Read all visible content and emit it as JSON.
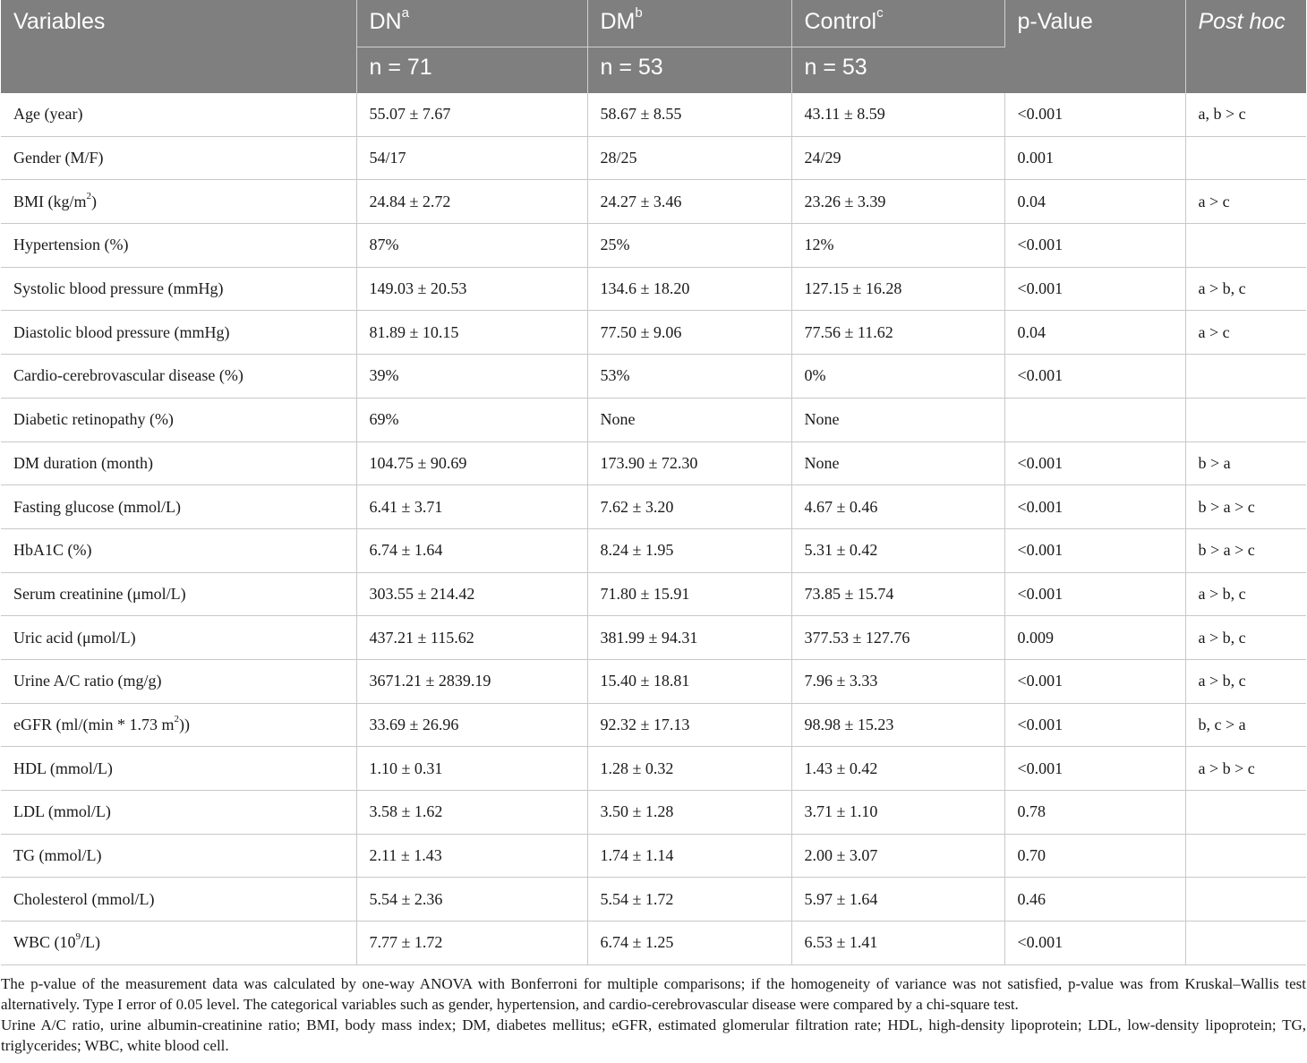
{
  "header": {
    "variables": "Variables",
    "dn": {
      "label": "DN",
      "sup": "a",
      "n": "n = 71"
    },
    "dm": {
      "label": "DM",
      "sup": "b",
      "n": "n = 53"
    },
    "control": {
      "label": "Control",
      "sup": "c",
      "n": "n = 53"
    },
    "pvalue": "p-Value",
    "posthoc": "Post hoc"
  },
  "rows": [
    {
      "variable": "Age (year)",
      "dn": "55.07 ± 7.67",
      "dm": "58.67 ± 8.55",
      "control": "43.11 ± 8.59",
      "p": "<0.001",
      "posthoc": "a, b > c"
    },
    {
      "variable": "Gender (M/F)",
      "dn": "54/17",
      "dm": "28/25",
      "control": "24/29",
      "p": "0.001",
      "posthoc": ""
    },
    {
      "variable": "BMI (kg/m",
      "variable_sup": "2",
      "variable_after": ")",
      "dn": "24.84 ± 2.72",
      "dm": "24.27 ± 3.46",
      "control": "23.26 ± 3.39",
      "p": "0.04",
      "posthoc": "a > c"
    },
    {
      "variable": "Hypertension (%)",
      "dn": "87%",
      "dm": "25%",
      "control": "12%",
      "p": "<0.001",
      "posthoc": ""
    },
    {
      "variable": "Systolic blood pressure (mmHg)",
      "dn": "149.03 ± 20.53",
      "dm": "134.6 ± 18.20",
      "control": "127.15 ± 16.28",
      "p": "<0.001",
      "posthoc": "a > b, c"
    },
    {
      "variable": "Diastolic blood pressure (mmHg)",
      "dn": "81.89 ± 10.15",
      "dm": "77.50 ± 9.06",
      "control": "77.56 ± 11.62",
      "p": "0.04",
      "posthoc": "a > c"
    },
    {
      "variable": "Cardio-cerebrovascular disease (%)",
      "dn": "39%",
      "dm": "53%",
      "control": "0%",
      "p": "<0.001",
      "posthoc": ""
    },
    {
      "variable": "Diabetic retinopathy (%)",
      "dn": "69%",
      "dm": "None",
      "control": "None",
      "p": "",
      "posthoc": ""
    },
    {
      "variable": "DM duration (month)",
      "dn": "104.75 ± 90.69",
      "dm": "173.90 ± 72.30",
      "control": "None",
      "p": "<0.001",
      "posthoc": "b > a"
    },
    {
      "variable": "Fasting glucose (mmol/L)",
      "dn": "6.41 ± 3.71",
      "dm": "7.62 ± 3.20",
      "control": "4.67 ± 0.46",
      "p": "<0.001",
      "posthoc": "b > a > c"
    },
    {
      "variable": "HbA1C (%)",
      "dn": "6.74 ± 1.64",
      "dm": "8.24 ± 1.95",
      "control": "5.31 ± 0.42",
      "p": "<0.001",
      "posthoc": "b > a > c"
    },
    {
      "variable": "Serum creatinine (μmol/L)",
      "dn": "303.55 ± 214.42",
      "dm": "71.80 ± 15.91",
      "control": "73.85 ± 15.74",
      "p": "<0.001",
      "posthoc": "a > b, c"
    },
    {
      "variable": "Uric acid (μmol/L)",
      "dn": "437.21 ± 115.62",
      "dm": "381.99 ± 94.31",
      "control": "377.53 ± 127.76",
      "p": "0.009",
      "posthoc": "a > b, c"
    },
    {
      "variable": "Urine A/C ratio (mg/g)",
      "dn": "3671.21 ± 2839.19",
      "dm": "15.40 ± 18.81",
      "control": "7.96 ± 3.33",
      "p": "<0.001",
      "posthoc": "a > b, c"
    },
    {
      "variable": "eGFR (ml/(min * 1.73 m",
      "variable_sup": "2",
      "variable_after": "))",
      "dn": "33.69 ± 26.96",
      "dm": "92.32 ± 17.13",
      "control": "98.98 ± 15.23",
      "p": "<0.001",
      "posthoc": "b, c > a"
    },
    {
      "variable": "HDL (mmol/L)",
      "dn": "1.10 ± 0.31",
      "dm": "1.28 ± 0.32",
      "control": "1.43 ± 0.42",
      "p": "<0.001",
      "posthoc": "a > b > c"
    },
    {
      "variable": "LDL (mmol/L)",
      "dn": "3.58 ± 1.62",
      "dm": "3.50 ± 1.28",
      "control": "3.71 ± 1.10",
      "p": "0.78",
      "posthoc": ""
    },
    {
      "variable": "TG (mmol/L)",
      "dn": "2.11 ± 1.43",
      "dm": "1.74 ± 1.14",
      "control": "2.00 ± 3.07",
      "p": "0.70",
      "posthoc": ""
    },
    {
      "variable": "Cholesterol (mmol/L)",
      "dn": "5.54 ± 2.36",
      "dm": "5.54 ± 1.72",
      "control": "5.97 ± 1.64",
      "p": "0.46",
      "posthoc": ""
    },
    {
      "variable": "WBC (10",
      "variable_sup": "9",
      "variable_after": "/L)",
      "dn": "7.77 ± 1.72",
      "dm": "6.74 ± 1.25",
      "control": "6.53 ± 1.41",
      "p": "<0.001",
      "posthoc": ""
    }
  ],
  "notes": [
    "The p-value of the measurement data was calculated by one-way ANOVA with Bonferroni for multiple comparisons; if the homogeneity of variance was not satisfied, p-value was from Kruskal–Wallis test alternatively. Type I error of 0.05 level. The categorical variables such as gender, hypertension, and cardio-cerebrovascular disease were compared by a chi-square test.",
    "Urine A/C ratio, urine albumin-creatinine ratio; BMI, body mass index; DM, diabetes mellitus; eGFR, estimated glomerular filtration rate; HDL, high-density lipoprotein; LDL, low-density lipoprotein; TG, triglycerides; WBC, white blood cell."
  ]
}
